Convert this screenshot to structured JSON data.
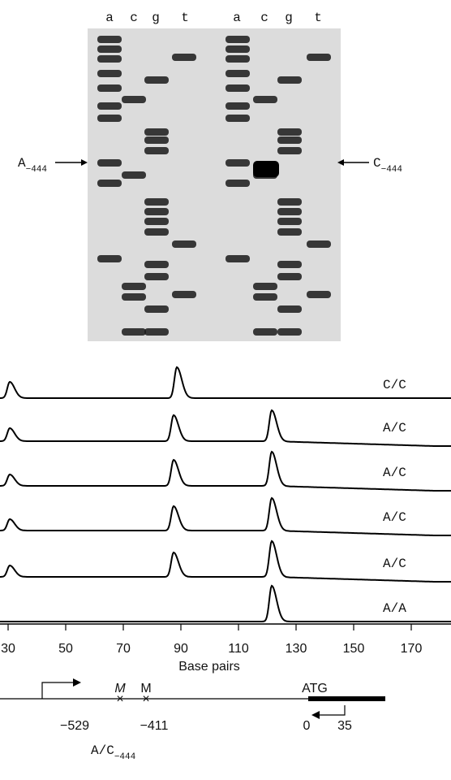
{
  "gel": {
    "lanes_left": [
      "a",
      "c",
      "g",
      "t"
    ],
    "lanes_right": [
      "a",
      "c",
      "g",
      "t"
    ],
    "left_marker": {
      "main": "A",
      "sub": "−444"
    },
    "right_marker": {
      "main": "C",
      "sub": "−444"
    }
  },
  "traces": {
    "genotypes": [
      "C/C",
      "A/C",
      "A/C",
      "A/C",
      "A/C",
      "A/A"
    ],
    "x_tick_labels": [
      "30",
      "50",
      "70",
      "90",
      "110",
      "130",
      "150",
      "170"
    ],
    "x_title": "Base pairs"
  },
  "diagram": {
    "m_italic": "M",
    "m_plain": "M",
    "atg": "ATG",
    "pos_529": "−529",
    "pos_411": "−411",
    "pos_0": "0",
    "pos_35": "35",
    "snp": {
      "main": "A/C",
      "sub": "−444"
    }
  }
}
